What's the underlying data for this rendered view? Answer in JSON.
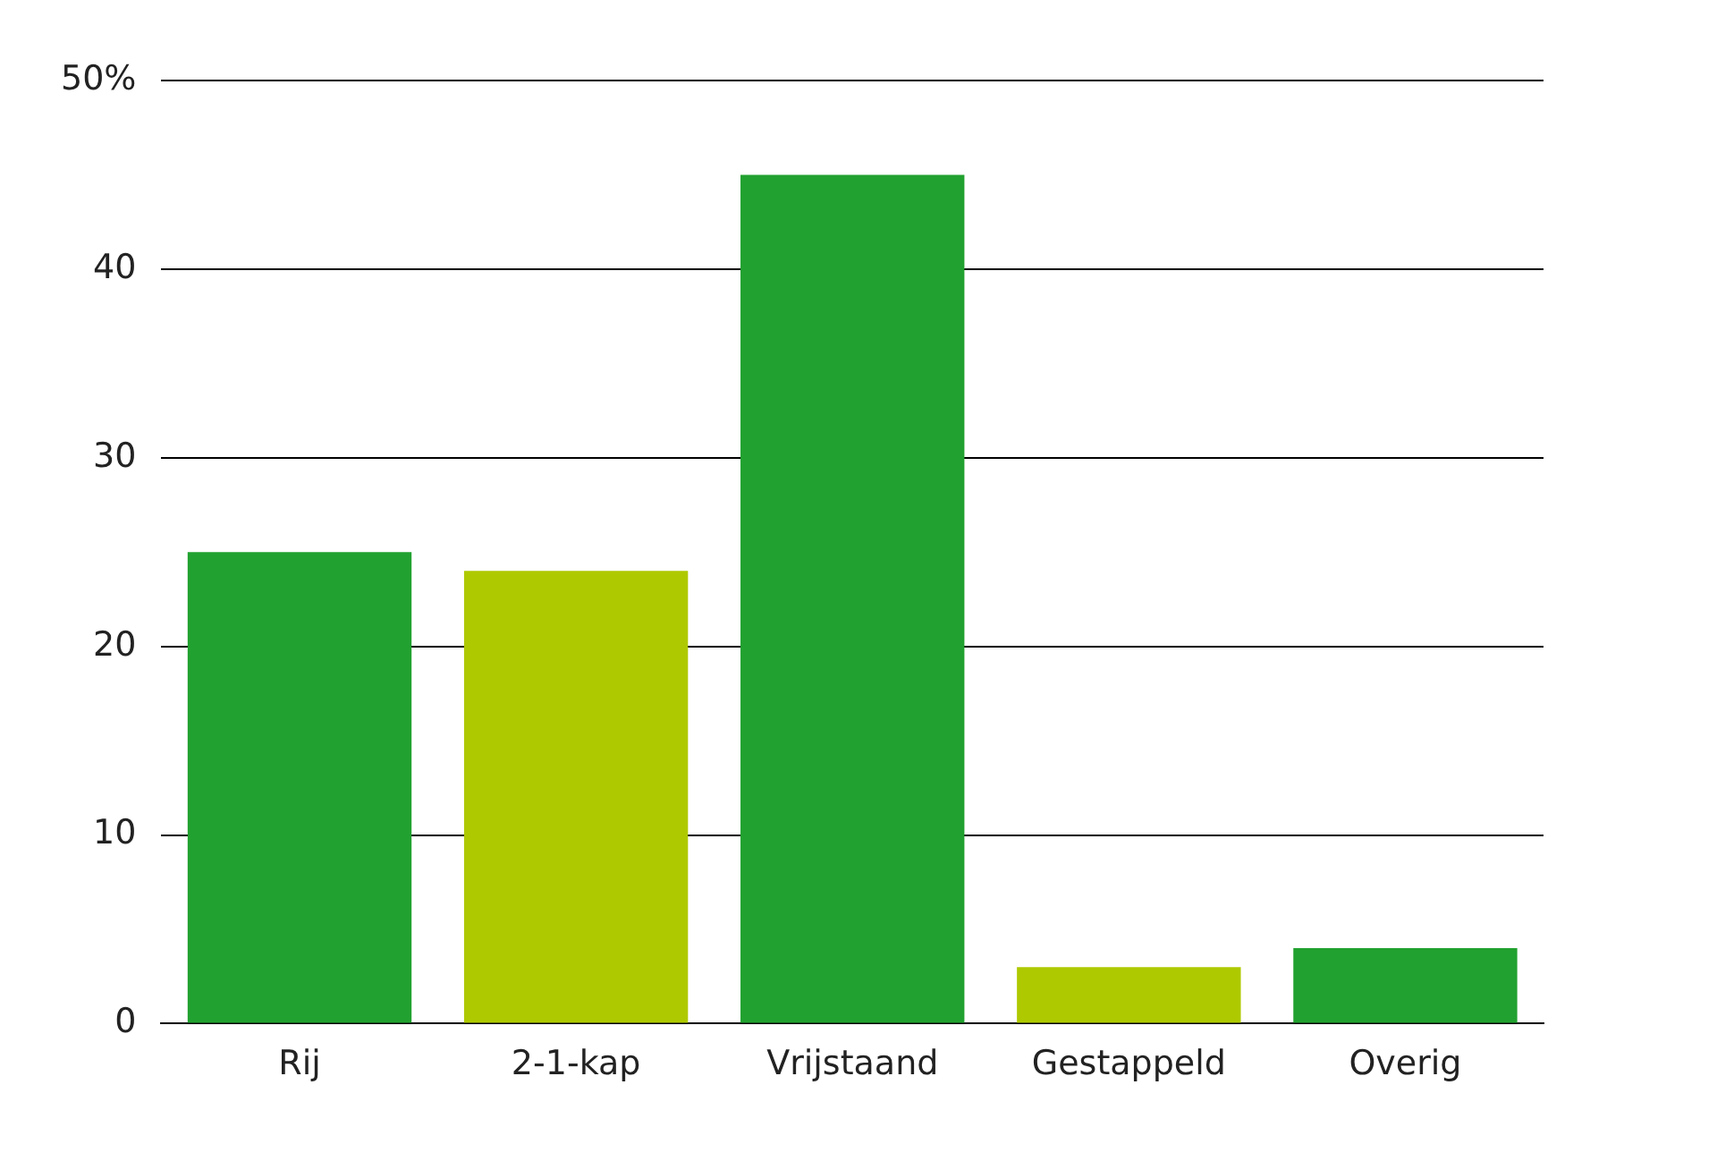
{
  "chart_data": {
    "type": "bar",
    "categories": [
      "Rij",
      "2-1-kap",
      "Vrijstaand",
      "Gestappeld",
      "Overig"
    ],
    "values": [
      25,
      24,
      45,
      3,
      4
    ],
    "colors": [
      "#21a12f",
      "#aec900",
      "#21a12f",
      "#aec900",
      "#21a12f"
    ],
    "ylim": [
      0,
      50
    ],
    "yticks": [
      0,
      10,
      20,
      30,
      40,
      {
        "value": 50,
        "label": "50%"
      }
    ],
    "grid": "y",
    "legend": false
  }
}
